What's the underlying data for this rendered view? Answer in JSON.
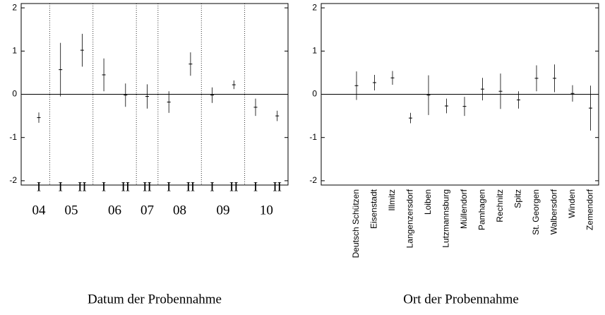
{
  "chart_data": [
    {
      "type": "errorbar",
      "x_label": "Datum der Probennahme",
      "ylim": [
        -2.1,
        2.1
      ],
      "yticks": [
        -2,
        -1,
        0,
        1,
        2
      ],
      "groups": [
        {
          "name": "04",
          "categories": [
            "I"
          ],
          "values": [
            -0.54
          ],
          "errors": [
            0.12
          ]
        },
        {
          "name": "05",
          "categories": [
            "I",
            "II"
          ],
          "values": [
            0.57,
            1.02
          ],
          "errors": [
            0.62,
            0.38
          ]
        },
        {
          "name": "06",
          "categories": [
            "I",
            "II"
          ],
          "values": [
            0.45,
            -0.02
          ],
          "errors": [
            0.38,
            0.27
          ]
        },
        {
          "name": "07",
          "categories": [
            "II"
          ],
          "values": [
            -0.05
          ],
          "errors": [
            0.28
          ]
        },
        {
          "name": "08",
          "categories": [
            "I",
            "II"
          ],
          "values": [
            -0.18,
            0.7
          ],
          "errors": [
            0.25,
            0.27
          ]
        },
        {
          "name": "09",
          "categories": [
            "I",
            "II"
          ],
          "values": [
            -0.02,
            0.22
          ],
          "errors": [
            0.18,
            0.1
          ]
        },
        {
          "name": "10",
          "categories": [
            "I",
            "II"
          ],
          "values": [
            -0.3,
            -0.5
          ],
          "errors": [
            0.2,
            0.12
          ]
        }
      ]
    },
    {
      "type": "errorbar",
      "x_label": "Ort der Probennahme",
      "ylim": [
        -2.1,
        2.1
      ],
      "yticks": [
        -2,
        -1,
        0,
        1,
        2
      ],
      "categories": [
        "Deutsch Schützen",
        "Eisenstadt",
        "Illmitz",
        "Langenzersdorf",
        "Loiben",
        "Lutzmannsburg",
        "Müllendorf",
        "Pamhagen",
        "Rechnitz",
        "Spitz",
        "St. Georgen",
        "Walbersdorf",
        "Winden",
        "Zemendorf"
      ],
      "values": [
        0.2,
        0.27,
        0.38,
        -0.55,
        -0.02,
        -0.27,
        -0.28,
        0.12,
        0.07,
        -0.13,
        0.37,
        0.37,
        0.02,
        -0.32
      ],
      "errors": [
        0.33,
        0.18,
        0.16,
        0.12,
        0.46,
        0.17,
        0.22,
        0.26,
        0.41,
        0.2,
        0.3,
        0.32,
        0.19,
        0.52
      ]
    }
  ]
}
